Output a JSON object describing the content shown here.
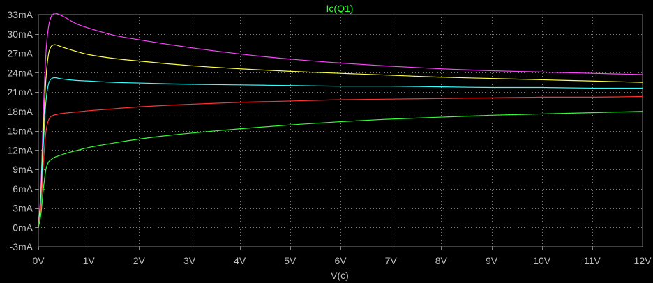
{
  "chart_data": {
    "type": "line",
    "title": "Ic(Q1)",
    "xlabel": "V(c)",
    "ylabel": "",
    "xlim": [
      0,
      12
    ],
    "ylim": [
      -3,
      33
    ],
    "grid": true,
    "x_ticks": [
      "0V",
      "1V",
      "2V",
      "3V",
      "4V",
      "5V",
      "6V",
      "7V",
      "8V",
      "9V",
      "10V",
      "11V",
      "12V"
    ],
    "y_ticks": [
      "-3mA",
      "0mA",
      "3mA",
      "6mA",
      "9mA",
      "12mA",
      "15mA",
      "18mA",
      "21mA",
      "24mA",
      "27mA",
      "30mA",
      "33mA"
    ],
    "colors": {
      "background": "#000000",
      "grid": "#808080",
      "axis_text": "#c0c0c0",
      "title": "#33ff33"
    },
    "series": [
      {
        "color": "#ff44ff",
        "x": [
          0,
          0.05,
          0.1,
          0.15,
          0.2,
          0.25,
          0.3,
          0.35,
          0.5,
          0.75,
          1,
          1.5,
          2,
          3,
          4,
          5,
          6,
          7,
          8,
          9,
          10,
          11,
          12
        ],
        "y": [
          0,
          6,
          18,
          27,
          31,
          32.6,
          33.1,
          33.2,
          32.7,
          31.6,
          30.9,
          29.8,
          29.1,
          27.9,
          26.9,
          26.1,
          25.5,
          25.0,
          24.6,
          24.3,
          24.1,
          23.9,
          23.7
        ]
      },
      {
        "color": "#ffff44",
        "x": [
          0,
          0.05,
          0.1,
          0.15,
          0.2,
          0.25,
          0.3,
          0.35,
          0.5,
          0.75,
          1,
          1.5,
          2,
          3,
          4,
          5,
          6,
          7,
          8,
          9,
          10,
          11,
          12
        ],
        "y": [
          0,
          5,
          15,
          23,
          26.8,
          28.0,
          28.3,
          28.3,
          27.9,
          27.3,
          26.8,
          26.2,
          25.8,
          25.1,
          24.6,
          24.2,
          23.9,
          23.6,
          23.3,
          23.1,
          22.9,
          22.7,
          22.5
        ]
      },
      {
        "color": "#33ffff",
        "x": [
          0,
          0.05,
          0.1,
          0.15,
          0.2,
          0.25,
          0.3,
          0.35,
          0.5,
          0.75,
          1,
          1.5,
          2,
          3,
          4,
          5,
          6,
          7,
          8,
          9,
          10,
          11,
          12
        ],
        "y": [
          0,
          4,
          13,
          19.5,
          22.2,
          23.0,
          23.2,
          23.2,
          23.0,
          22.8,
          22.7,
          22.5,
          22.4,
          22.2,
          22.1,
          22.0,
          21.9,
          21.9,
          21.8,
          21.7,
          21.7,
          21.6,
          21.6
        ]
      },
      {
        "color": "#ff3333",
        "x": [
          0,
          0.05,
          0.1,
          0.15,
          0.2,
          0.25,
          0.3,
          0.35,
          0.5,
          0.75,
          1,
          1.5,
          2,
          3,
          4,
          5,
          6,
          7,
          8,
          9,
          10,
          11,
          12
        ],
        "y": [
          0,
          3,
          10,
          14.8,
          16.6,
          17.2,
          17.4,
          17.5,
          17.7,
          17.9,
          18.1,
          18.4,
          18.7,
          19.1,
          19.4,
          19.6,
          19.8,
          19.9,
          20.0,
          20.1,
          20.2,
          20.2,
          20.3
        ]
      },
      {
        "color": "#33ff33",
        "x": [
          0,
          0.05,
          0.1,
          0.15,
          0.2,
          0.25,
          0.3,
          0.4,
          0.6,
          0.8,
          1,
          1.5,
          2,
          2.5,
          3,
          4,
          5,
          6,
          7,
          8,
          9,
          10,
          11,
          12
        ],
        "y": [
          0,
          2,
          6,
          9,
          10.1,
          10.5,
          10.8,
          11.1,
          11.6,
          12.0,
          12.4,
          13.1,
          13.7,
          14.2,
          14.6,
          15.3,
          15.9,
          16.4,
          16.8,
          17.1,
          17.4,
          17.6,
          17.8,
          18.0
        ]
      }
    ]
  }
}
